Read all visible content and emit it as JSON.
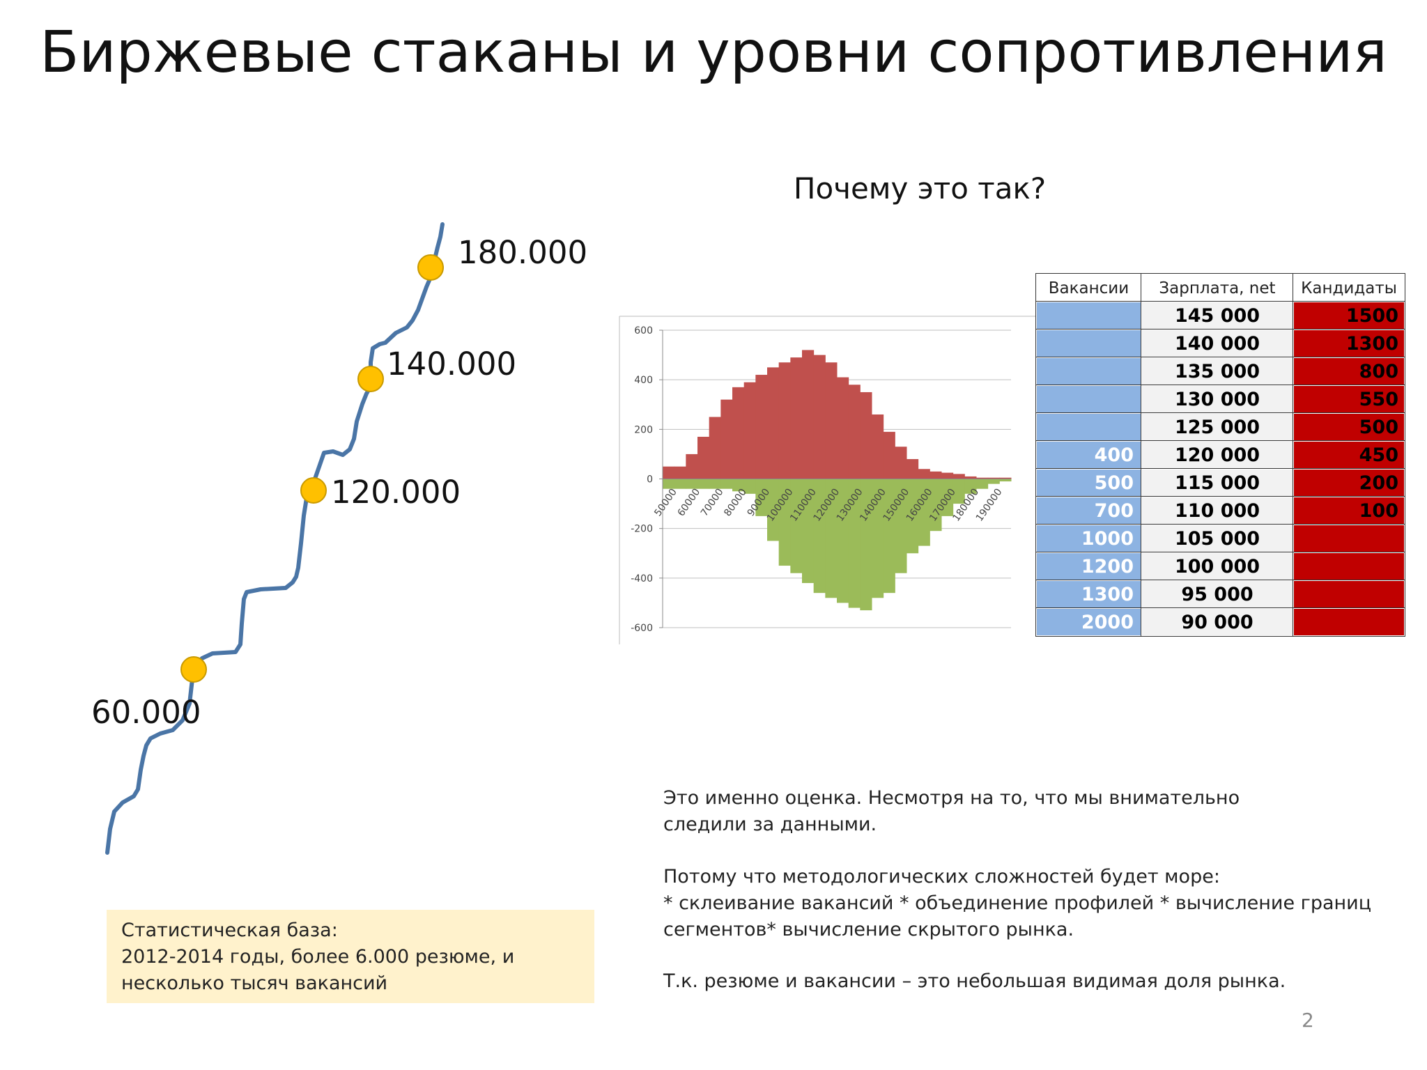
{
  "slide_title": "Биржевые стаканы и уровни сопротивления",
  "subtitle": "Почему это так?",
  "salary_levels": [
    {
      "label": "180.000"
    },
    {
      "label": "140.000"
    },
    {
      "label": "120.000"
    },
    {
      "label": "60.000"
    }
  ],
  "colors": {
    "curve": "#4a75a6",
    "marker": "#ffc000",
    "marker_stroke": "#c99a00",
    "candidates_bar": "#c0504d",
    "vacancies_bar": "#9bbb59",
    "table_vac": "#8db3e2",
    "table_cand": "#c00000",
    "table_salary": "#f2f2f2",
    "stat_box": "#fff2cc"
  },
  "chart_data": {
    "type": "bar",
    "categories": [
      "50000",
      "55000",
      "60000",
      "65000",
      "70000",
      "75000",
      "80000",
      "85000",
      "90000",
      "95000",
      "100000",
      "105000",
      "110000",
      "115000",
      "120000",
      "125000",
      "130000",
      "135000",
      "140000",
      "145000",
      "150000",
      "155000",
      "160000",
      "165000",
      "170000",
      "175000",
      "180000",
      "185000",
      "190000",
      "195000"
    ],
    "x_tick_labels": [
      "50000",
      "60000",
      "70000",
      "80000",
      "90000",
      "100000",
      "110000",
      "120000",
      "130000",
      "140000",
      "150000",
      "160000",
      "170000",
      "180000",
      "190000"
    ],
    "series": [
      {
        "values": [
          50,
          50,
          100,
          170,
          250,
          320,
          370,
          390,
          420,
          450,
          470,
          490,
          520,
          500,
          470,
          410,
          380,
          350,
          260,
          190,
          130,
          80,
          40,
          30,
          25,
          20,
          10,
          5,
          5,
          5
        ]
      },
      {
        "values": [
          -40,
          -40,
          -40,
          -40,
          -40,
          -40,
          -50,
          -60,
          -150,
          -250,
          -350,
          -380,
          -420,
          -460,
          -480,
          -500,
          -520,
          -530,
          -480,
          -460,
          -380,
          -300,
          -270,
          -210,
          -150,
          -100,
          -60,
          -40,
          -20,
          -10
        ]
      }
    ],
    "ylim": [
      -600,
      600
    ],
    "y_ticks": [
      "600",
      "400",
      "200",
      "0",
      "-200",
      "-400",
      "-600"
    ],
    "grid": true
  },
  "table": {
    "headers": [
      "Вакансии",
      "Зарплата, net",
      "Кандидаты"
    ],
    "rows": [
      {
        "vacancies": "",
        "salary": "145 000",
        "candidates": "1500"
      },
      {
        "vacancies": "",
        "salary": "140 000",
        "candidates": "1300"
      },
      {
        "vacancies": "",
        "salary": "135 000",
        "candidates": "800"
      },
      {
        "vacancies": "",
        "salary": "130 000",
        "candidates": "550"
      },
      {
        "vacancies": "",
        "salary": "125 000",
        "candidates": "500"
      },
      {
        "vacancies": "400",
        "salary": "120 000",
        "candidates": "450"
      },
      {
        "vacancies": "500",
        "salary": "115 000",
        "candidates": "200"
      },
      {
        "vacancies": "700",
        "salary": "110 000",
        "candidates": "100"
      },
      {
        "vacancies": "1000",
        "salary": "105 000",
        "candidates": ""
      },
      {
        "vacancies": "1200",
        "salary": "100 000",
        "candidates": ""
      },
      {
        "vacancies": "1300",
        "salary": "95 000",
        "candidates": ""
      },
      {
        "vacancies": "2000",
        "salary": "90 000",
        "candidates": ""
      }
    ]
  },
  "stat_box": {
    "lines": [
      "Статистическая база:",
      "2012-2014 годы, более 6.000 резюме, и",
      "несколько тысяч вакансий"
    ]
  },
  "notes": {
    "lines": [
      "Это именно оценка. Несмотря на то, что мы внимательно",
      "следили за данными.",
      "",
      "Потому что методологических сложностей будет море:",
      "* склеивание вакансий * объединение профилей * вычисление границ",
      "сегментов* вычисление скрытого рынка.",
      "",
      "Т.к. резюме и вакансии – это небольшая видимая доля рынка."
    ]
  },
  "page_number": "2"
}
